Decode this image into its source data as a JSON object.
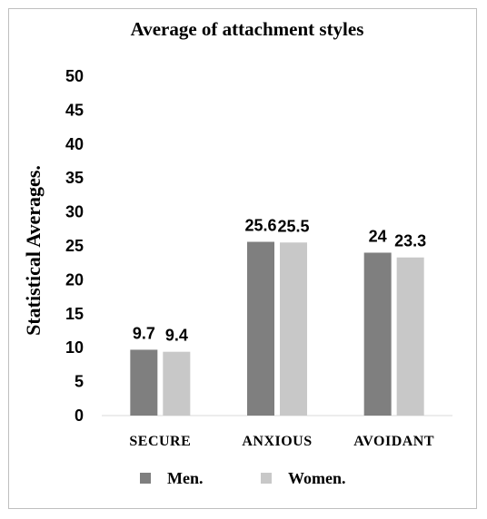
{
  "chart_data": {
    "type": "bar",
    "title": "Average of attachment styles",
    "xlabel": "",
    "ylabel": "Statistical Averages.",
    "ylim": [
      0,
      50
    ],
    "yticks": [
      0,
      5,
      10,
      15,
      20,
      25,
      30,
      35,
      40,
      45,
      50
    ],
    "grid": false,
    "legend_position": "bottom",
    "categories": [
      "SECURE",
      "ANXIOUS",
      "AVOIDANT"
    ],
    "series": [
      {
        "name": "Men.",
        "color": "#7f7f7f",
        "values": [
          9.7,
          25.6,
          24
        ],
        "labels": [
          "9.7",
          "25.6",
          "24"
        ]
      },
      {
        "name": "Women.",
        "color": "#c8c8c8",
        "values": [
          9.4,
          25.5,
          23.3
        ],
        "labels": [
          "9.4",
          "25.5",
          "23.3"
        ]
      }
    ]
  }
}
